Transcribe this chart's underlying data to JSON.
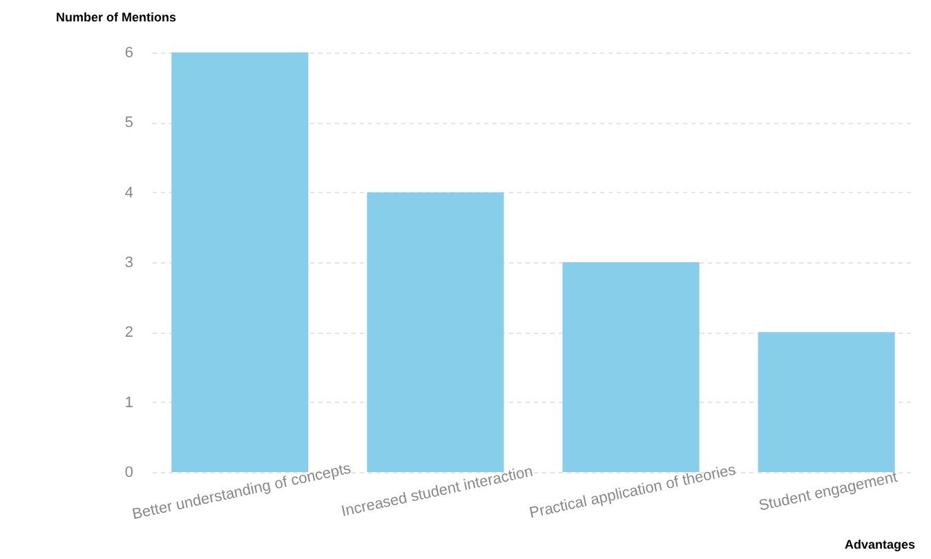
{
  "chart_data": {
    "type": "bar",
    "xlabel": "Advantages",
    "ylabel": "Number of Mentions",
    "categories": [
      "Better understanding of concepts",
      "Increased student interaction",
      "Practical application of theories",
      "Student engagement"
    ],
    "values": [
      6,
      4,
      3,
      2
    ],
    "color": "#87ceeb",
    "ylim": [
      0,
      6
    ],
    "yticks": [
      0,
      1,
      2,
      3,
      4,
      5,
      6
    ],
    "grid": "y"
  }
}
